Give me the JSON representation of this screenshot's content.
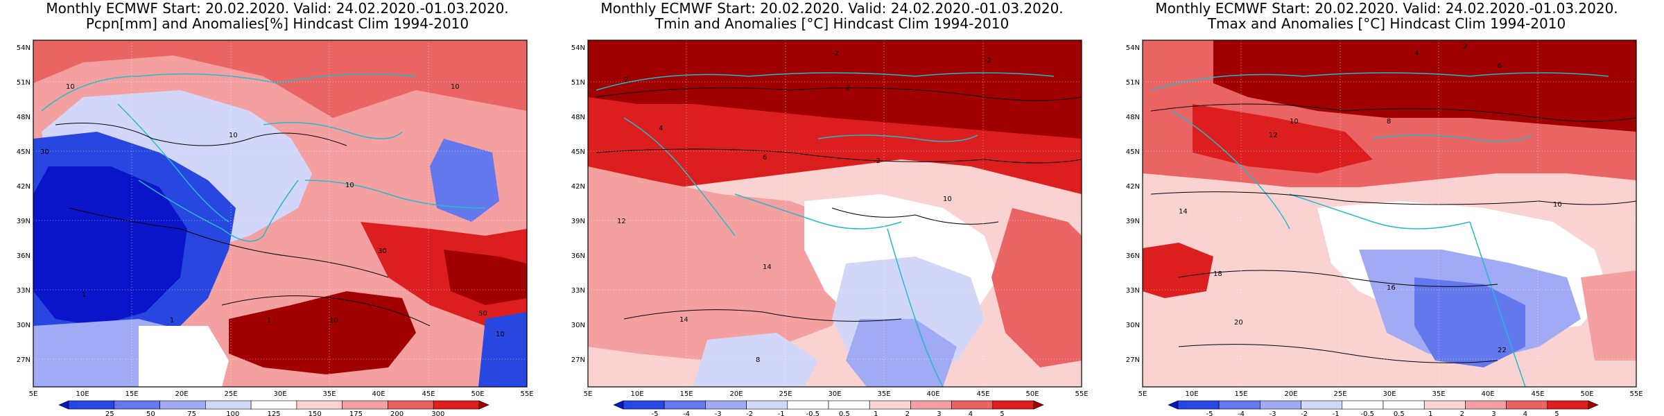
{
  "panels": [
    {
      "line1": "Monthly ECMWF Start: 20.02.2020. Valid: 24.02.2020.-01.03.2020.",
      "line2": "Pcpn[mm] and Anomalies[%] Hindcast Clim 1994-2010",
      "colorbar": [
        "25",
        "50",
        "75",
        "100",
        "125",
        "150",
        "175",
        "200",
        "300"
      ],
      "colors": [
        "#0a14c8",
        "#2846e0",
        "#6478ee",
        "#a0aaf5",
        "#d2d7fa",
        "#ffffff",
        "#fad2d2",
        "#f5a0a0",
        "#eb6464",
        "#dc1e1e",
        "#a00000"
      ],
      "contour_labels": [
        "10",
        "10",
        "10",
        "10",
        "30",
        "30",
        "1",
        "1",
        "1",
        "10",
        "10",
        "50"
      ]
    },
    {
      "line1": "Monthly ECMWF Start: 20.02.2020. Valid: 24.02.2020.-01.03.2020.",
      "line2": "Tmin and Anomalies [°C] Hindcast Clim 1994-2010",
      "colorbar": [
        "-5",
        "-4",
        "-3",
        "-2",
        "-1",
        "-0.5",
        "0.5",
        "1",
        "2",
        "3",
        "4",
        "5"
      ],
      "colors": [
        "#0a14c8",
        "#2846e0",
        "#6478ee",
        "#a0aaf5",
        "#d2d7fa",
        "#ffffff",
        "#ffffff",
        "#fad2d2",
        "#f5a0a0",
        "#eb6464",
        "#dc1e1e",
        "#a00000"
      ],
      "contour_labels": [
        "-2",
        "-2",
        "2",
        "4",
        "2",
        "-2",
        "6",
        "10",
        "12",
        "14",
        "14",
        "8"
      ]
    },
    {
      "line1": "Monthly ECMWF Start: 20.02.2020. Valid: 24.02.2020.-01.03.2020.",
      "line2": "Tmax and Anomalies [°C] Hindcast Clim 1994-2010",
      "colorbar": [
        "-5",
        "-4",
        "-3",
        "-2",
        "-1",
        "-0.5",
        "0.5",
        "1",
        "2",
        "3",
        "4",
        "5"
      ],
      "colors": [
        "#0a14c8",
        "#2846e0",
        "#6478ee",
        "#a0aaf5",
        "#d2d7fa",
        "#ffffff",
        "#ffffff",
        "#fad2d2",
        "#f5a0a0",
        "#eb6464",
        "#dc1e1e",
        "#a00000"
      ],
      "contour_labels": [
        "2",
        "4",
        "6",
        "8",
        "10",
        "12",
        "14",
        "16",
        "18",
        "20",
        "22",
        "10"
      ]
    }
  ],
  "lat_ticks": [
    "54N",
    "51N",
    "48N",
    "45N",
    "42N",
    "39N",
    "36N",
    "33N",
    "30N",
    "27N"
  ],
  "lon_ticks": [
    "5E",
    "10E",
    "15E",
    "20E",
    "25E",
    "30E",
    "35E",
    "40E",
    "45E",
    "50E",
    "55E"
  ]
}
